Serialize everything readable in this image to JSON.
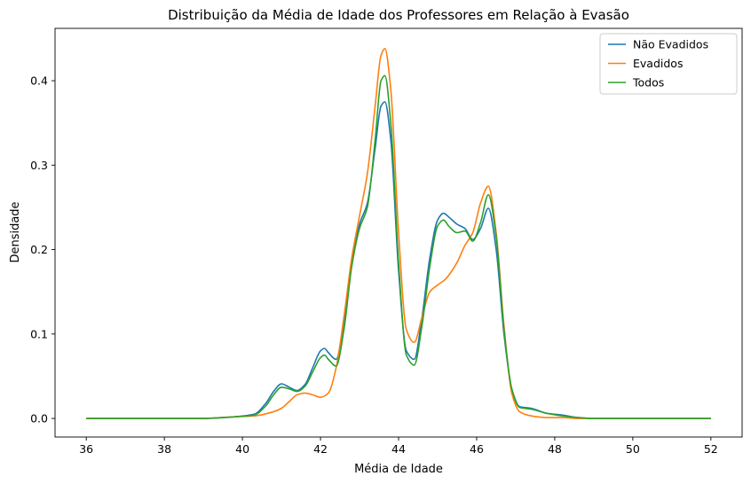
{
  "chart_data": {
    "type": "line",
    "title": "Distribuição da Média de Idade dos Professores em Relação à Evasão",
    "xlabel": "Média de Idade",
    "ylabel": "Densidade",
    "xlim": [
      35.2,
      52.8
    ],
    "ylim": [
      -0.022,
      0.462
    ],
    "x_ticks": [
      36,
      38,
      40,
      42,
      44,
      46,
      48,
      50,
      52
    ],
    "y_ticks": [
      0.0,
      0.1,
      0.2,
      0.3,
      0.4
    ],
    "y_tick_labels": [
      "0.0",
      "0.1",
      "0.2",
      "0.3",
      "0.4"
    ],
    "grid": false,
    "legend_position": "top-right",
    "series": [
      {
        "name": "Não Evadidos",
        "color": "#1f77b4",
        "x": [
          36,
          39,
          39.8,
          40.3,
          40.6,
          40.8,
          41.0,
          41.2,
          41.4,
          41.6,
          41.8,
          42.0,
          42.1,
          42.2,
          42.4,
          42.6,
          42.8,
          43.0,
          43.2,
          43.4,
          43.55,
          43.65,
          43.8,
          44.0,
          44.2,
          44.4,
          44.6,
          44.8,
          45.0,
          45.15,
          45.3,
          45.5,
          45.7,
          45.9,
          46.1,
          46.3,
          46.5,
          46.7,
          46.9,
          47.1,
          47.4,
          47.8,
          48.2,
          48.6,
          49,
          52
        ],
        "y": [
          0.0,
          0.0,
          0.002,
          0.005,
          0.018,
          0.032,
          0.041,
          0.037,
          0.033,
          0.04,
          0.06,
          0.08,
          0.083,
          0.078,
          0.07,
          0.115,
          0.185,
          0.23,
          0.255,
          0.32,
          0.37,
          0.375,
          0.33,
          0.175,
          0.08,
          0.07,
          0.12,
          0.19,
          0.235,
          0.243,
          0.238,
          0.23,
          0.225,
          0.212,
          0.225,
          0.249,
          0.2,
          0.1,
          0.035,
          0.014,
          0.012,
          0.006,
          0.004,
          0.001,
          0.0,
          0.0
        ]
      },
      {
        "name": "Evadidos",
        "color": "#ff7f0e",
        "x": [
          36,
          39,
          39.8,
          40.3,
          40.8,
          41.0,
          41.2,
          41.4,
          41.6,
          41.8,
          42.0,
          42.2,
          42.4,
          42.6,
          42.8,
          43.0,
          43.2,
          43.4,
          43.55,
          43.65,
          43.8,
          44.0,
          44.2,
          44.4,
          44.6,
          44.8,
          45.0,
          45.2,
          45.5,
          45.7,
          45.9,
          46.1,
          46.3,
          46.5,
          46.7,
          46.9,
          47.1,
          47.4,
          47.8,
          48.2,
          48.6,
          49,
          52
        ],
        "y": [
          0.0,
          0.0,
          0.002,
          0.003,
          0.008,
          0.012,
          0.02,
          0.028,
          0.03,
          0.028,
          0.025,
          0.03,
          0.06,
          0.12,
          0.19,
          0.24,
          0.29,
          0.37,
          0.43,
          0.438,
          0.39,
          0.22,
          0.105,
          0.09,
          0.12,
          0.15,
          0.158,
          0.165,
          0.185,
          0.205,
          0.22,
          0.255,
          0.275,
          0.22,
          0.11,
          0.03,
          0.008,
          0.003,
          0.001,
          0.001,
          0.0,
          0.0,
          0.0
        ]
      },
      {
        "name": "Todos",
        "color": "#2ca02c",
        "x": [
          36,
          39,
          39.8,
          40.3,
          40.6,
          40.8,
          41.0,
          41.2,
          41.4,
          41.6,
          41.8,
          42.0,
          42.1,
          42.2,
          42.4,
          42.6,
          42.8,
          43.0,
          43.2,
          43.4,
          43.55,
          43.65,
          43.8,
          44.0,
          44.2,
          44.4,
          44.6,
          44.8,
          45.0,
          45.15,
          45.3,
          45.5,
          45.7,
          45.9,
          46.1,
          46.3,
          46.5,
          46.7,
          46.9,
          47.1,
          47.4,
          47.8,
          48.2,
          48.6,
          49,
          52
        ],
        "y": [
          0.0,
          0.0,
          0.002,
          0.004,
          0.015,
          0.028,
          0.037,
          0.035,
          0.032,
          0.038,
          0.055,
          0.072,
          0.075,
          0.07,
          0.062,
          0.105,
          0.18,
          0.225,
          0.25,
          0.33,
          0.4,
          0.406,
          0.35,
          0.185,
          0.075,
          0.063,
          0.11,
          0.18,
          0.228,
          0.235,
          0.227,
          0.22,
          0.222,
          0.21,
          0.232,
          0.265,
          0.215,
          0.105,
          0.035,
          0.013,
          0.011,
          0.006,
          0.003,
          0.001,
          0.0,
          0.0
        ]
      }
    ]
  }
}
